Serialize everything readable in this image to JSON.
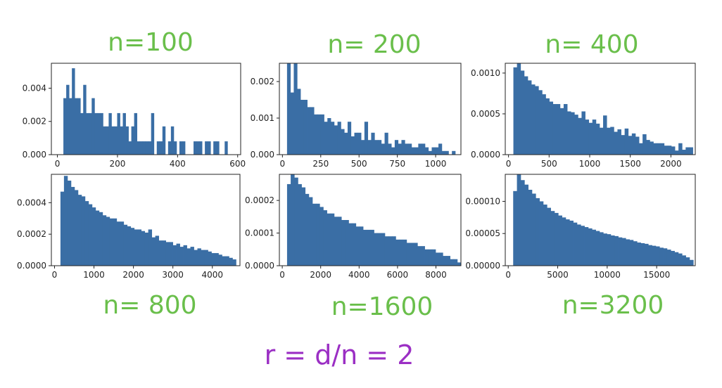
{
  "annotations": {
    "top": [
      "n=100",
      "n= 200",
      "n= 400"
    ],
    "bottom": [
      "n= 800",
      "n=1600",
      "n=3200"
    ],
    "formula": "r = d/n = 2",
    "colors": {
      "n_labels": "#6abf4b",
      "formula": "#9b2fc4"
    }
  },
  "bar_color": "#3a6ea5",
  "chart_data": [
    {
      "type": "bar",
      "title": "",
      "xlabel": "",
      "ylabel": "",
      "xlim": [
        -20,
        610
      ],
      "ylim": [
        0,
        0.0055
      ],
      "x_ticks": [
        0,
        200,
        400,
        600
      ],
      "x_tick_labels": [
        "0",
        "200",
        "400",
        "600"
      ],
      "y_ticks": [
        0,
        0.002,
        0.004
      ],
      "y_tick_labels": [
        "0.000",
        "0.002",
        "0.004"
      ],
      "bins": [
        [
          20,
          585
        ],
        [
          0.0034,
          0.0042,
          0.0034,
          0.0052,
          0.0034,
          0.0034,
          0.0025,
          0.0042,
          0.0025,
          0.0025,
          0.0034,
          0.0025,
          0.0025,
          0.0025,
          0.0017,
          0.0017,
          0.0025,
          0.0017,
          0.0017,
          0.0025,
          0.0017,
          0.0025,
          0.0017,
          0.0008,
          0.0017,
          0.0025,
          0.0008,
          0.0008,
          0.0008,
          0.0008,
          0.0008,
          0.0025,
          0.0,
          0.0008,
          0.0008,
          0.0017,
          0.0,
          0.0008,
          0.0017,
          0.0008,
          0.0,
          0.0008,
          0.0008,
          0.0,
          0.0,
          0.0,
          0.0008,
          0.0008,
          0.0008,
          0.0,
          0.0008,
          0.0008,
          0.0,
          0.0008,
          0.0008,
          0.0,
          0.0,
          0.0008,
          0.0,
          0.0
        ]
      ]
    },
    {
      "type": "bar",
      "title": "",
      "xlabel": "",
      "ylabel": "",
      "xlim": [
        -20,
        1165
      ],
      "ylim": [
        0,
        0.0025
      ],
      "x_ticks": [
        0,
        250,
        500,
        750,
        1000
      ],
      "x_tick_labels": [
        "0",
        "250",
        "500",
        "750",
        "1000"
      ],
      "y_ticks": [
        0,
        0.001,
        0.002
      ],
      "y_tick_labels": [
        "0.000",
        "0.001",
        "0.002"
      ],
      "bins": [
        [
          30,
          1150
        ],
        [
          0.0025,
          0.0017,
          0.0025,
          0.0018,
          0.0015,
          0.0015,
          0.0013,
          0.0013,
          0.0011,
          0.0011,
          0.0011,
          0.0009,
          0.001,
          0.0009,
          0.0008,
          0.0009,
          0.0007,
          0.0006,
          0.0009,
          0.0005,
          0.0006,
          0.0006,
          0.0004,
          0.0009,
          0.0004,
          0.0006,
          0.0004,
          0.0004,
          0.0003,
          0.0006,
          0.0003,
          0.0002,
          0.0004,
          0.0003,
          0.0004,
          0.0003,
          0.0003,
          0.0002,
          0.0002,
          0.0003,
          0.0003,
          0.0002,
          0.0001,
          0.0002,
          0.0002,
          0.0003,
          0.0001,
          0.0001,
          0.0,
          0.0001,
          0.0
        ]
      ]
    },
    {
      "type": "bar",
      "title": "",
      "xlabel": "",
      "ylabel": "",
      "xlim": [
        -40,
        2300
      ],
      "ylim": [
        0,
        0.00112
      ],
      "x_ticks": [
        0,
        500,
        1000,
        1500,
        2000
      ],
      "x_tick_labels": [
        "0",
        "500",
        "1000",
        "1500",
        "2000"
      ],
      "y_ticks": [
        0,
        0.0005,
        0.001
      ],
      "y_tick_labels": [
        "0.0000",
        "0.0005",
        "0.0010"
      ],
      "bins": [
        [
          60,
          2270
        ],
        [
          0.00107,
          0.00112,
          0.00103,
          0.00096,
          0.00091,
          0.00086,
          0.00084,
          0.00079,
          0.00074,
          0.00069,
          0.00065,
          0.00062,
          0.00062,
          0.00057,
          0.00062,
          0.00053,
          0.00052,
          0.00049,
          0.00045,
          0.00053,
          0.00043,
          0.00039,
          0.00043,
          0.00038,
          0.00033,
          0.00048,
          0.00033,
          0.00034,
          0.00028,
          0.00031,
          0.00024,
          0.00032,
          0.00023,
          0.00026,
          0.00022,
          0.00014,
          0.00025,
          0.00018,
          0.00016,
          0.00014,
          0.00014,
          0.00014,
          0.00011,
          0.00011,
          0.0001,
          5e-05,
          0.00014,
          6e-05,
          9e-05,
          9e-05
        ]
      ]
    },
    {
      "type": "bar",
      "title": "",
      "xlabel": "",
      "ylabel": "",
      "xlim": [
        -80,
        4700
      ],
      "ylim": [
        0,
        0.00058
      ],
      "x_ticks": [
        0,
        1000,
        2000,
        3000,
        4000
      ],
      "x_tick_labels": [
        "0",
        "1000",
        "2000",
        "3000",
        "4000"
      ],
      "y_ticks": [
        0,
        0.0002,
        0.0004
      ],
      "y_tick_labels": [
        "0.0000",
        "0.0002",
        "0.0004"
      ],
      "bins": [
        [
          150,
          4600
        ],
        [
          0.00047,
          0.00057,
          0.00054,
          0.0005,
          0.00048,
          0.00045,
          0.00044,
          0.00041,
          0.00039,
          0.00037,
          0.00035,
          0.00034,
          0.00032,
          0.00031,
          0.0003,
          0.0003,
          0.00028,
          0.00028,
          0.00026,
          0.00025,
          0.00024,
          0.00023,
          0.00023,
          0.00022,
          0.00021,
          0.00023,
          0.00018,
          0.00019,
          0.00016,
          0.00016,
          0.00015,
          0.00015,
          0.00013,
          0.00014,
          0.00012,
          0.00013,
          0.00011,
          0.00012,
          0.0001,
          0.00011,
          0.0001,
          0.0001,
          9e-05,
          8e-05,
          8e-05,
          7e-05,
          6e-05,
          6e-05,
          5e-05,
          4e-05
        ]
      ]
    },
    {
      "type": "bar",
      "title": "",
      "xlabel": "",
      "ylabel": "",
      "xlim": [
        -150,
        9300
      ],
      "ylim": [
        0,
        0.00028
      ],
      "x_ticks": [
        0,
        2000,
        4000,
        6000,
        8000
      ],
      "x_tick_labels": [
        "0",
        "2000",
        "4000",
        "6000",
        "8000"
      ],
      "y_ticks": [
        0,
        0.0001,
        0.0002
      ],
      "y_tick_labels": [
        "0.0000",
        "0.0001",
        "0.0002"
      ],
      "bins": [
        [
          250,
          9300
        ],
        [
          0.00025,
          0.00028,
          0.00027,
          0.00025,
          0.00024,
          0.00022,
          0.00021,
          0.00019,
          0.00019,
          0.00018,
          0.00017,
          0.00016,
          0.00016,
          0.00015,
          0.00015,
          0.00014,
          0.00014,
          0.00013,
          0.00013,
          0.00012,
          0.00012,
          0.00011,
          0.00011,
          0.00011,
          0.0001,
          0.0001,
          0.0001,
          9e-05,
          9e-05,
          9e-05,
          8e-05,
          8e-05,
          8e-05,
          7e-05,
          7e-05,
          7e-05,
          6e-05,
          6e-05,
          5e-05,
          5e-05,
          5e-05,
          4e-05,
          4e-05,
          3e-05,
          3e-05,
          2e-05,
          2e-05,
          1e-05
        ]
      ]
    },
    {
      "type": "bar",
      "title": "",
      "xlabel": "",
      "ylabel": "",
      "xlim": [
        -300,
        18900
      ],
      "ylim": [
        0,
        0.000142
      ],
      "x_ticks": [
        0,
        5000,
        10000,
        15000
      ],
      "x_tick_labels": [
        "0",
        "5000",
        "10000",
        "15000"
      ],
      "y_ticks": [
        0,
        5e-05,
        0.0001
      ],
      "y_tick_labels": [
        "0.00000",
        "0.00005",
        "0.00010"
      ],
      "bins": [
        [
          500,
          18700
        ],
        [
          0.000116,
          0.000142,
          0.000133,
          0.000126,
          0.000118,
          0.000112,
          0.000105,
          0.0001,
          9.5e-05,
          9e-05,
          8.5e-05,
          8.2e-05,
          7.8e-05,
          7.5e-05,
          7.2e-05,
          7e-05,
          6.7e-05,
          6.4e-05,
          6.2e-05,
          6e-05,
          5.8e-05,
          5.6e-05,
          5.4e-05,
          5.2e-05,
          5e-05,
          4.9e-05,
          4.7e-05,
          4.6e-05,
          4.4e-05,
          4.3e-05,
          4.1e-05,
          4e-05,
          3.8e-05,
          3.6e-05,
          3.5e-05,
          3.4e-05,
          3.2e-05,
          3.1e-05,
          3e-05,
          2.8e-05,
          2.7e-05,
          2.5e-05,
          2.3e-05,
          2.1e-05,
          1.9e-05,
          1.6e-05,
          1.3e-05,
          9e-06
        ]
      ]
    }
  ]
}
